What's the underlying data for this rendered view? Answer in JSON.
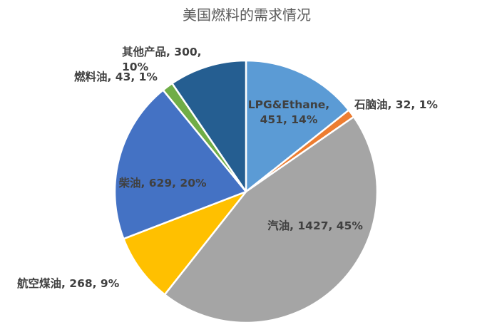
{
  "chart_data": {
    "type": "pie",
    "title": "美国燃料的需求情况",
    "legend": "none",
    "slices": [
      {
        "name": "LPG&Ethane",
        "value": 451,
        "percent_label": "14%",
        "label_lines": [
          "LPG&Ethane,",
          "451, 14%"
        ],
        "color": "#5B9BD5"
      },
      {
        "name": "石脑油",
        "value": 32,
        "percent_label": "1%",
        "label_lines": [
          "石脑油, 32, 1%"
        ],
        "color": "#ED7D31"
      },
      {
        "name": "汽油",
        "value": 1427,
        "percent_label": "45%",
        "label_lines": [
          "汽油, 1427, 45%"
        ],
        "color": "#A5A5A5"
      },
      {
        "name": "航空煤油",
        "value": 268,
        "percent_label": "9%",
        "label_lines": [
          "航空煤油, 268, 9%"
        ],
        "color": "#FFC000"
      },
      {
        "name": "柴油",
        "value": 629,
        "percent_label": "20%",
        "label_lines": [
          "柴油, 629, 20%"
        ],
        "color": "#4472C4"
      },
      {
        "name": "燃料油",
        "value": 43,
        "percent_label": "1%",
        "label_lines": [
          "燃料油, 43, 1%"
        ],
        "color": "#70AD47"
      },
      {
        "name": "其他产品",
        "value": 300,
        "percent_label": "10%",
        "label_lines": [
          "其他产品, 300,",
          "10%"
        ],
        "color": "#255E91"
      }
    ]
  }
}
